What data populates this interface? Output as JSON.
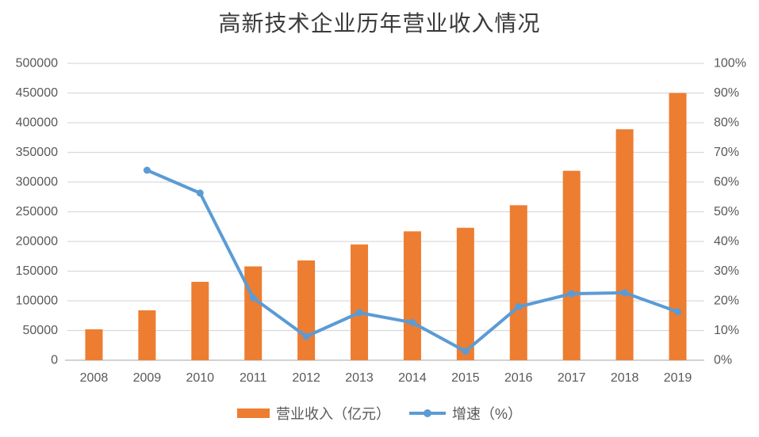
{
  "title": "高新技术企业历年营业收入情况",
  "colors": {
    "bar": "#ED7D31",
    "line": "#5B9BD5",
    "grid": "#D9D9D9",
    "axis_line": "#C6C6C6",
    "axis_text": "#595959",
    "title_text": "#3B3B3B",
    "background": "#FFFFFF"
  },
  "chart_data": {
    "type": "combo-bar-line",
    "title": "高新技术企业历年营业收入情况",
    "categories": [
      "2008",
      "2009",
      "2010",
      "2011",
      "2012",
      "2013",
      "2014",
      "2015",
      "2016",
      "2017",
      "2018",
      "2019"
    ],
    "series": [
      {
        "name": "营业收入（亿元）",
        "type": "bar",
        "axis": "left",
        "color": "#ED7D31",
        "values": [
          52000,
          84000,
          132000,
          158000,
          168000,
          195000,
          217000,
          223000,
          261000,
          319000,
          389000,
          450000
        ]
      },
      {
        "name": "增速（%）",
        "type": "line",
        "axis": "right",
        "color": "#5B9BD5",
        "values": [
          null,
          64,
          56.3,
          21,
          8,
          16,
          12.7,
          3,
          18,
          22.4,
          22.7,
          16.3
        ]
      }
    ],
    "left_axis": {
      "min": 0,
      "max": 500000,
      "step": 50000,
      "tick_labels": [
        "0",
        "50000",
        "100000",
        "150000",
        "200000",
        "250000",
        "300000",
        "350000",
        "400000",
        "450000",
        "500000"
      ]
    },
    "right_axis": {
      "min": 0,
      "max": 100,
      "step": 10,
      "tick_labels": [
        "0%",
        "10%",
        "20%",
        "30%",
        "40%",
        "50%",
        "60%",
        "70%",
        "80%",
        "90%",
        "100%"
      ]
    },
    "grid": true,
    "legend_position": "bottom"
  },
  "legend": {
    "items": [
      {
        "label": "营业收入（亿元）",
        "marker": "bar-swatch"
      },
      {
        "label": "增速（%）",
        "marker": "line-dot-swatch"
      }
    ]
  }
}
